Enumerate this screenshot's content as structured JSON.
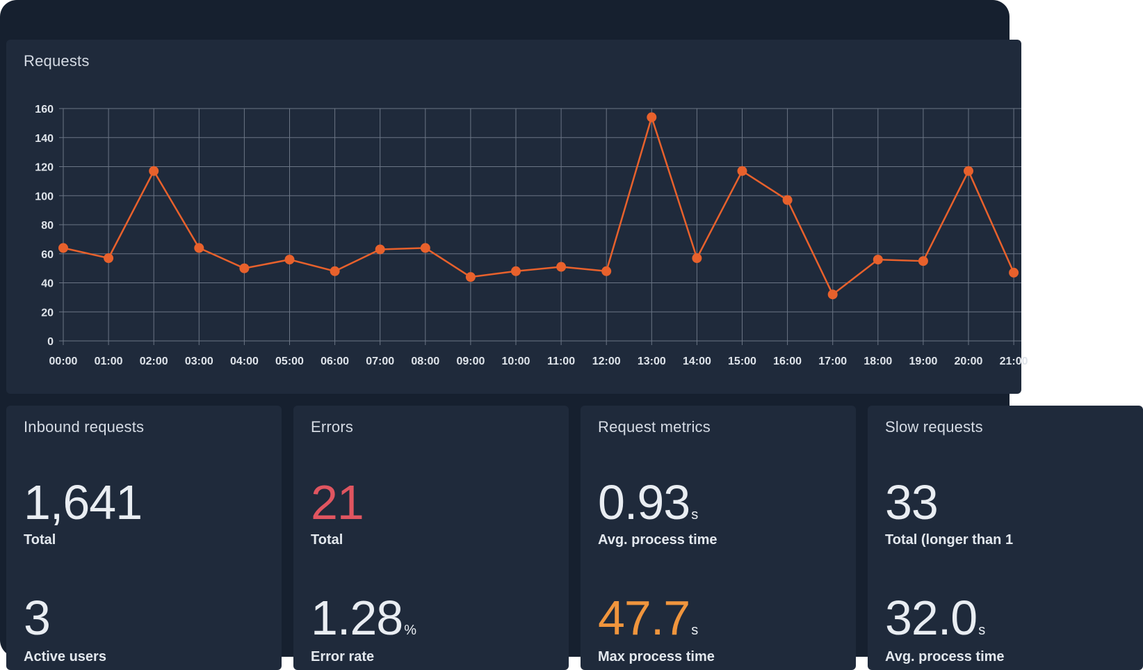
{
  "requests_panel": {
    "title": "Requests"
  },
  "chart_data": {
    "type": "line",
    "title": "Requests",
    "x": [
      "00:00",
      "01:00",
      "02:00",
      "03:00",
      "04:00",
      "05:00",
      "06:00",
      "07:00",
      "08:00",
      "09:00",
      "10:00",
      "11:00",
      "12:00",
      "13:00",
      "14:00",
      "15:00",
      "16:00",
      "17:00",
      "18:00",
      "19:00",
      "20:00",
      "21:00"
    ],
    "series": [
      {
        "values": [
          64,
          57,
          117,
          64,
          50,
          56,
          48,
          63,
          64,
          44,
          48,
          51,
          48,
          154,
          57,
          117,
          97,
          32,
          56,
          55,
          117,
          47
        ],
        "color": "#e8612c"
      }
    ],
    "yticks": [
      0,
      20,
      40,
      60,
      80,
      100,
      120,
      140,
      160
    ],
    "ylim": [
      0,
      160
    ],
    "grid": true,
    "xlabel": "",
    "ylabel": ""
  },
  "cards": {
    "inbound": {
      "title": "Inbound requests",
      "value1": "1,641",
      "label1": "Total",
      "value2": "3",
      "label2": "Active users"
    },
    "errors": {
      "title": "Errors",
      "value1": "21",
      "label1": "Total",
      "value2": "1.28",
      "unit2": "%",
      "label2": "Error rate",
      "value1_color": "#e05560"
    },
    "metrics": {
      "title": "Request metrics",
      "value1": "0.93",
      "unit1": "s",
      "label1": "Avg. process time",
      "value2": "47.7",
      "unit2": "s",
      "label2": "Max process time",
      "value2_color": "#f0953d"
    },
    "slow": {
      "title": "Slow requests",
      "value1": "33",
      "label1": "Total (longer than 1",
      "value2": "32.0",
      "unit2": "s",
      "label2": "Avg. process time"
    }
  }
}
